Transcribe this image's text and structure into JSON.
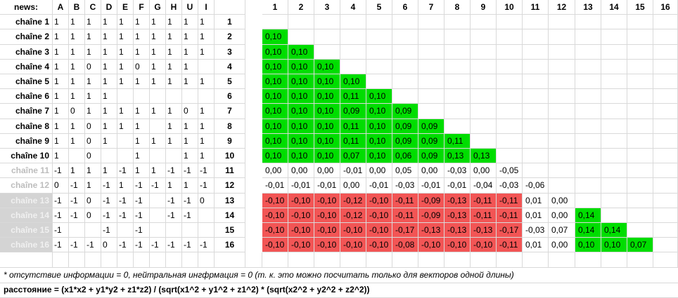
{
  "corner_label": "news:",
  "colors": {
    "positive": "#00dd00",
    "negative": "#f25555",
    "grid": "#d9d9d9",
    "disabled_label_bg": "#d4d4d4"
  },
  "left_columns": [
    "A",
    "B",
    "C",
    "D",
    "E",
    "F",
    "G",
    "H",
    "U",
    "I"
  ],
  "left_rows": [
    {
      "label": "chaîne 1",
      "style": "normal",
      "cells": [
        "1",
        "1",
        "1",
        "1",
        "1",
        "1",
        "1",
        "1",
        "1",
        "1"
      ]
    },
    {
      "label": "chaîne 2",
      "style": "normal",
      "cells": [
        "1",
        "1",
        "1",
        "1",
        "1",
        "1",
        "1",
        "1",
        "1",
        "1"
      ]
    },
    {
      "label": "chaîne 3",
      "style": "normal",
      "cells": [
        "1",
        "1",
        "1",
        "1",
        "1",
        "1",
        "1",
        "1",
        "1",
        "1"
      ]
    },
    {
      "label": "chaîne 4",
      "style": "normal",
      "cells": [
        "1",
        "1",
        "0",
        "1",
        "1",
        "0",
        "1",
        "1",
        "1",
        ""
      ]
    },
    {
      "label": "chaîne 5",
      "style": "normal",
      "cells": [
        "1",
        "1",
        "1",
        "1",
        "1",
        "1",
        "1",
        "1",
        "1",
        "1"
      ]
    },
    {
      "label": "chaîne 6",
      "style": "normal",
      "cells": [
        "1",
        "1",
        "1",
        "1",
        "",
        "",
        "",
        "",
        "",
        ""
      ]
    },
    {
      "label": "chaîne 7",
      "style": "normal",
      "cells": [
        "1",
        "0",
        "1",
        "1",
        "1",
        "1",
        "1",
        "1",
        "0",
        "1"
      ]
    },
    {
      "label": "chaîne 8",
      "style": "normal",
      "cells": [
        "1",
        "1",
        "0",
        "1",
        "1",
        "1",
        "",
        "1",
        "1",
        "1"
      ]
    },
    {
      "label": "chaîne 9",
      "style": "normal",
      "cells": [
        "1",
        "1",
        "0",
        "1",
        "",
        "1",
        "1",
        "1",
        "1",
        "1"
      ]
    },
    {
      "label": "chaîne 10",
      "style": "normal",
      "cells": [
        "1",
        "",
        "0",
        "",
        "",
        "1",
        "",
        "",
        "1",
        "1"
      ]
    },
    {
      "label": "chaîne 11",
      "style": "faded",
      "cells": [
        "-1",
        "1",
        "1",
        "1",
        "-1",
        "1",
        "1",
        "-1",
        "-1",
        "-1"
      ]
    },
    {
      "label": "chaîne 12",
      "style": "faded",
      "cells": [
        "0",
        "-1",
        "1",
        "-1",
        "1",
        "-1",
        "-1",
        "1",
        "1",
        "-1"
      ]
    },
    {
      "label": "chaîne 13",
      "style": "shaded",
      "cells": [
        "-1",
        "-1",
        "0",
        "-1",
        "-1",
        "-1",
        "",
        "-1",
        "-1",
        "0"
      ]
    },
    {
      "label": "chaîne 14",
      "style": "shaded",
      "cells": [
        "-1",
        "-1",
        "0",
        "-1",
        "-1",
        "-1",
        "",
        "-1",
        "-1",
        ""
      ]
    },
    {
      "label": "chaîne 15",
      "style": "shaded",
      "cells": [
        "-1",
        "",
        "",
        "-1",
        "",
        "-1",
        "",
        "",
        "",
        ""
      ]
    },
    {
      "label": "chaîne 16",
      "style": "shaded",
      "cells": [
        "-1",
        "-1",
        "-1",
        "0",
        "-1",
        "-1",
        "-1",
        "-1",
        "-1",
        "-1"
      ]
    }
  ],
  "matrix_columns": [
    "1",
    "2",
    "3",
    "4",
    "5",
    "6",
    "7",
    "8",
    "9",
    "10",
    "11",
    "12",
    "13",
    "14",
    "15",
    "16"
  ],
  "matrix_rows": [
    {
      "label": "1",
      "values": []
    },
    {
      "label": "2",
      "values": [
        "0,10"
      ]
    },
    {
      "label": "3",
      "values": [
        "0,10",
        "0,10"
      ]
    },
    {
      "label": "4",
      "values": [
        "0,10",
        "0,10",
        "0,10"
      ]
    },
    {
      "label": "5",
      "values": [
        "0,10",
        "0,10",
        "0,10",
        "0,10"
      ]
    },
    {
      "label": "6",
      "values": [
        "0,10",
        "0,10",
        "0,10",
        "0,11",
        "0,10"
      ]
    },
    {
      "label": "7",
      "values": [
        "0,10",
        "0,10",
        "0,10",
        "0,09",
        "0,10",
        "0,09"
      ]
    },
    {
      "label": "8",
      "values": [
        "0,10",
        "0,10",
        "0,10",
        "0,11",
        "0,10",
        "0,09",
        "0,09"
      ]
    },
    {
      "label": "9",
      "values": [
        "0,10",
        "0,10",
        "0,10",
        "0,11",
        "0,10",
        "0,09",
        "0,09",
        "0,11"
      ]
    },
    {
      "label": "10",
      "values": [
        "0,10",
        "0,10",
        "0,10",
        "0,07",
        "0,10",
        "0,06",
        "0,09",
        "0,13",
        "0,13"
      ]
    },
    {
      "label": "11",
      "values": [
        "0,00",
        "0,00",
        "0,00",
        "-0,01",
        "0,00",
        "0,05",
        "0,00",
        "-0,03",
        "0,00",
        "-0,05"
      ]
    },
    {
      "label": "12",
      "values": [
        "-0,01",
        "-0,01",
        "-0,01",
        "0,00",
        "-0,01",
        "-0,03",
        "-0,01",
        "-0,01",
        "-0,04",
        "-0,03",
        "-0,06"
      ]
    },
    {
      "label": "13",
      "values": [
        "-0,10",
        "-0,10",
        "-0,10",
        "-0,12",
        "-0,10",
        "-0,11",
        "-0,09",
        "-0,13",
        "-0,11",
        "-0,11",
        "0,01",
        "0,00"
      ]
    },
    {
      "label": "14",
      "values": [
        "-0,10",
        "-0,10",
        "-0,10",
        "-0,12",
        "-0,10",
        "-0,11",
        "-0,09",
        "-0,13",
        "-0,11",
        "-0,11",
        "0,01",
        "0,00",
        "0,14"
      ]
    },
    {
      "label": "15",
      "values": [
        "-0,10",
        "-0,10",
        "-0,10",
        "-0,10",
        "-0,10",
        "-0,17",
        "-0,13",
        "-0,13",
        "-0,13",
        "-0,17",
        "-0,03",
        "0,07",
        "0,14",
        "0,14"
      ]
    },
    {
      "label": "16",
      "values": [
        "-0,10",
        "-0,10",
        "-0,10",
        "-0,10",
        "-0,10",
        "-0,08",
        "-0,10",
        "-0,10",
        "-0,10",
        "-0,11",
        "0,01",
        "0,00",
        "0,10",
        "0,10",
        "0,07"
      ]
    }
  ],
  "footnote": "* отсутствие информации = 0, нейтральная ингфрмация = 0 (т. к. это можно посчитать только для векторов одной длины)",
  "formula": "расстояние = (x1*x2 + y1*y2 + z1*z2) / (sqrt(x1^2 + y1^2 + z1^2) * (sqrt(x2^2 + y2^2 + z2^2))"
}
